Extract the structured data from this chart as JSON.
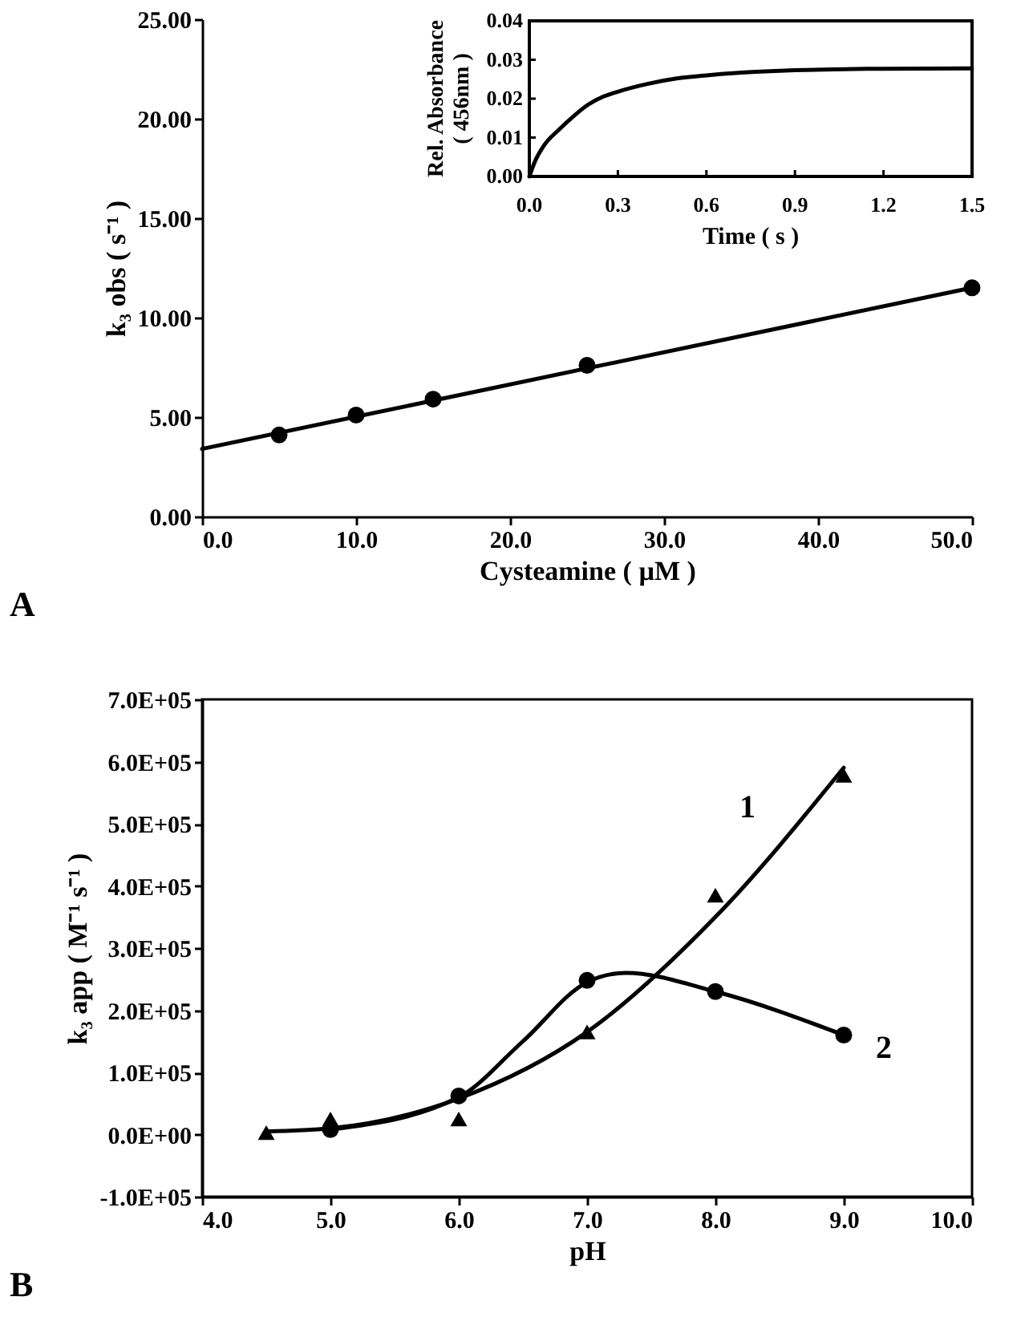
{
  "chart_data": [
    {
      "type": "scatter",
      "xlabel": "Cysteamine ( µM )",
      "ylabel": "k₃ obs ( s⁻¹ )",
      "annotations": [
        "A"
      ],
      "xlim": [
        0,
        50
      ],
      "ylim": [
        0,
        25
      ],
      "xticks": [
        {
          "value": 0,
          "label": "0.0"
        },
        {
          "value": 10,
          "label": "10.0"
        },
        {
          "value": 20,
          "label": "20.0"
        },
        {
          "value": 30,
          "label": "30.0"
        },
        {
          "value": 40,
          "label": "40.0"
        },
        {
          "value": 50,
          "label": "50.0"
        }
      ],
      "yticks": [
        {
          "value": 0,
          "label": "0.00"
        },
        {
          "value": 5,
          "label": "5.00"
        },
        {
          "value": 10,
          "label": "10.00"
        },
        {
          "value": 15,
          "label": "15.00"
        },
        {
          "value": 20,
          "label": "20.00"
        },
        {
          "value": 25,
          "label": "25.00"
        }
      ],
      "series": [
        {
          "type": "scatter",
          "marker": "circle",
          "color": "#000000",
          "x": [
            5,
            10,
            15,
            25,
            50
          ],
          "values": [
            4.1,
            5.1,
            5.9,
            7.6,
            11.5
          ]
        },
        {
          "type": "line",
          "line_style": "solid",
          "color": "#000000",
          "x": [
            0,
            50
          ],
          "values": [
            3.4,
            11.5
          ]
        }
      ]
    },
    {
      "type": "line",
      "xlabel": "Time ( s )",
      "ylabel": "Rel. Absorbance\n( 456nm )",
      "xlim": [
        0,
        1.5
      ],
      "ylim": [
        0,
        0.04
      ],
      "xticks": [
        {
          "value": 0,
          "label": "0.0"
        },
        {
          "value": 0.3,
          "label": "0.3"
        },
        {
          "value": 0.6,
          "label": "0.6"
        },
        {
          "value": 0.9,
          "label": "0.9"
        },
        {
          "value": 1.2,
          "label": "1.2"
        },
        {
          "value": 1.5,
          "label": "1.5"
        }
      ],
      "yticks": [
        {
          "value": 0,
          "label": "0.00"
        },
        {
          "value": 0.01,
          "label": "0.01"
        },
        {
          "value": 0.02,
          "label": "0.02"
        },
        {
          "value": 0.03,
          "label": "0.03"
        },
        {
          "value": 0.04,
          "label": "0.04"
        }
      ],
      "series": [
        {
          "line_style": "solid",
          "color": "#000000",
          "x": [
            0,
            0.02,
            0.05,
            0.1,
            0.15,
            0.2,
            0.25,
            0.3,
            0.4,
            0.5,
            0.6,
            0.7,
            0.8,
            0.9,
            1.0,
            1.2,
            1.5
          ],
          "values": [
            0,
            0.004,
            0.008,
            0.012,
            0.0155,
            0.0185,
            0.0205,
            0.0218,
            0.0238,
            0.0252,
            0.026,
            0.0266,
            0.027,
            0.0273,
            0.0275,
            0.0277,
            0.0278
          ]
        }
      ]
    },
    {
      "type": "scatter",
      "xlabel": "pH",
      "ylabel": "k₃ app ( M⁻¹ s⁻¹ )",
      "annotations": [
        "B"
      ],
      "xlim": [
        4,
        10
      ],
      "ylim": [
        -100000,
        700000
      ],
      "xticks": [
        {
          "value": 4,
          "label": "4.0"
        },
        {
          "value": 5,
          "label": "5.0"
        },
        {
          "value": 6,
          "label": "6.0"
        },
        {
          "value": 7,
          "label": "7.0"
        },
        {
          "value": 8,
          "label": "8.0"
        },
        {
          "value": 9,
          "label": "9.0"
        },
        {
          "value": 10,
          "label": "10.0"
        }
      ],
      "yticks": [
        {
          "value": -100000,
          "label": "-1.0E+05"
        },
        {
          "value": 0,
          "label": "0.0E+00"
        },
        {
          "value": 100000,
          "label": "1.0E+05"
        },
        {
          "value": 200000,
          "label": "2.0E+05"
        },
        {
          "value": 300000,
          "label": "3.0E+05"
        },
        {
          "value": 400000,
          "label": "4.0E+05"
        },
        {
          "value": 500000,
          "label": "5.0E+05"
        },
        {
          "value": 600000,
          "label": "6.0E+05"
        },
        {
          "value": 700000,
          "label": "7.0E+05"
        }
      ],
      "series": [
        {
          "name": "1",
          "type": "scatter",
          "marker": "triangle",
          "color": "#000000",
          "x": [
            4.5,
            5,
            6,
            7,
            8,
            9
          ],
          "values": [
            3000,
            25000,
            25000,
            165000,
            385000,
            578000
          ]
        },
        {
          "type": "line",
          "line_style": "solid",
          "color": "#000000",
          "x": [
            4.5,
            5,
            6,
            7,
            8,
            9
          ],
          "values": [
            5000,
            10000,
            58000,
            165000,
            350000,
            590000
          ]
        },
        {
          "name": "2",
          "type": "scatter",
          "marker": "circle",
          "color": "#000000",
          "x": [
            5,
            6,
            7,
            8,
            9
          ],
          "values": [
            8000,
            62000,
            248000,
            230000,
            160000
          ]
        },
        {
          "type": "line",
          "line_style": "solid",
          "color": "#000000",
          "x": [
            5,
            6,
            6.5,
            7,
            7.3,
            8,
            9
          ],
          "values": [
            8000,
            60000,
            150000,
            245000,
            260000,
            230000,
            160000
          ]
        }
      ]
    }
  ]
}
